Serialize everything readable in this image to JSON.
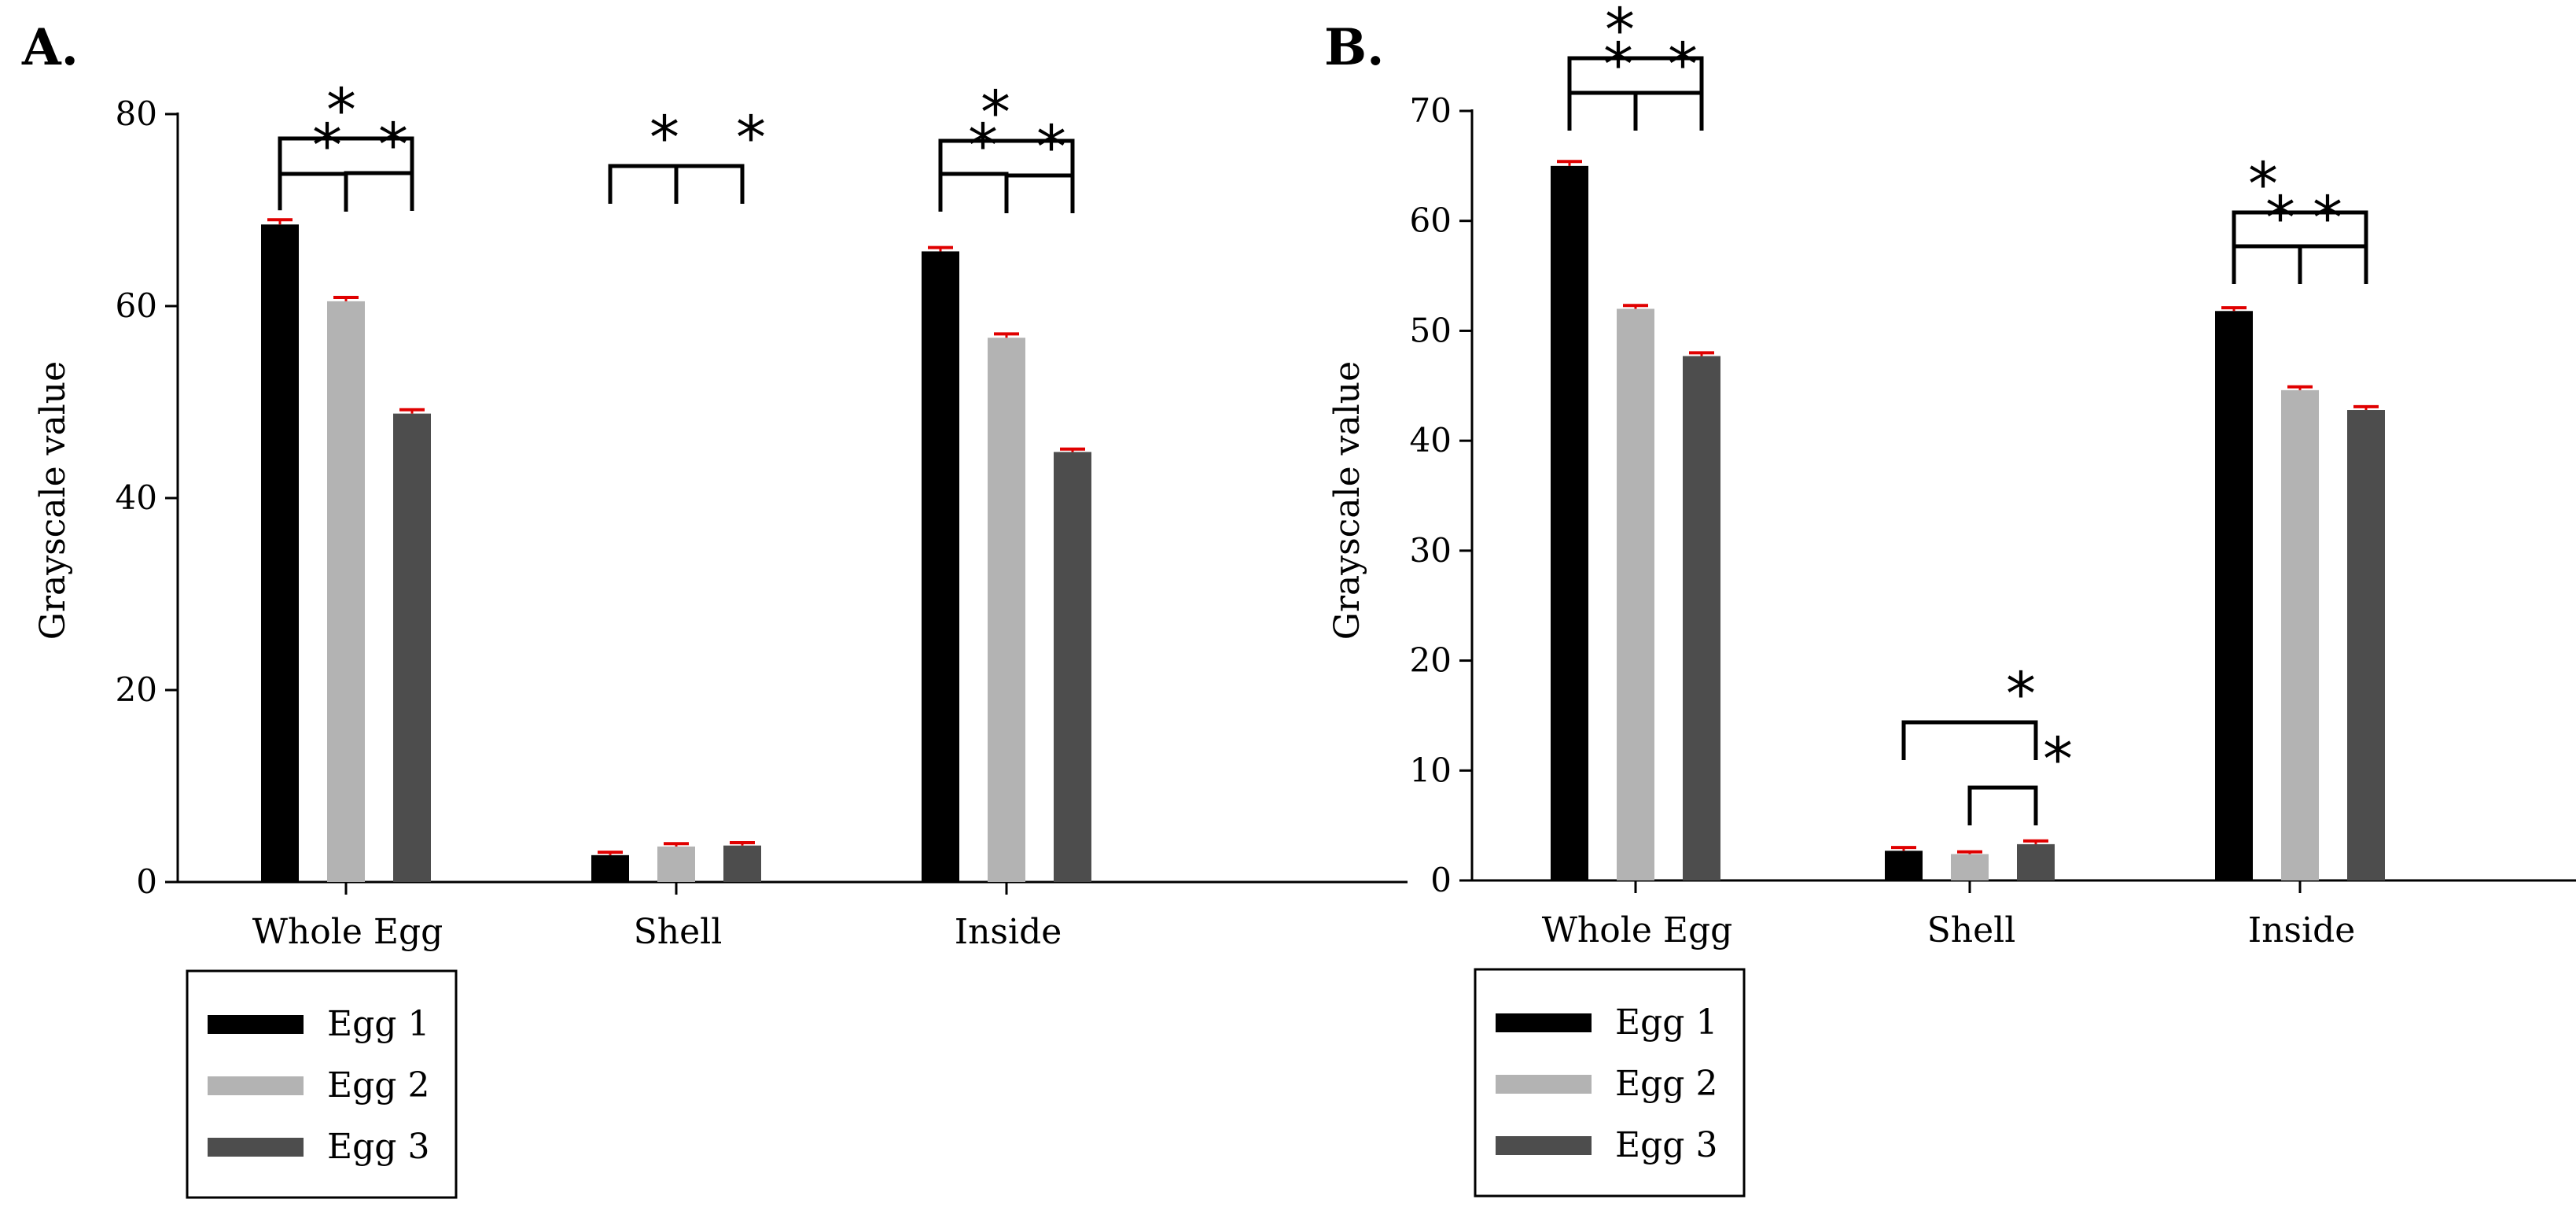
{
  "chart_data": [
    {
      "type": "bar",
      "panel_label": "A.",
      "title": "",
      "ylabel": "Grayscale value",
      "xlabel": "",
      "ylim": [
        0,
        80
      ],
      "yticks": [
        0,
        20,
        40,
        60,
        80
      ],
      "categories": [
        "Whole Egg",
        "Shell",
        "Inside"
      ],
      "series": [
        {
          "name": "Egg 1",
          "color": "#000000",
          "values": [
            68.5,
            2.8,
            65.7
          ],
          "errors": [
            0.5,
            0.3,
            0.4
          ]
        },
        {
          "name": "Egg 2",
          "color": "#b3b3b3",
          "values": [
            60.5,
            3.7,
            56.7
          ],
          "errors": [
            0.4,
            0.3,
            0.4
          ]
        },
        {
          "name": "Egg 3",
          "color": "#4d4d4d",
          "values": [
            48.8,
            3.8,
            44.8
          ],
          "errors": [
            0.4,
            0.3,
            0.3
          ]
        }
      ],
      "significance": [
        {
          "category": "Whole Egg",
          "from": "Egg 1",
          "to": "Egg 2",
          "label": "*"
        },
        {
          "category": "Whole Egg",
          "from": "Egg 1",
          "to": "Egg 3",
          "label": "*"
        },
        {
          "category": "Whole Egg",
          "from": "Egg 2",
          "to": "Egg 3",
          "label": "*"
        },
        {
          "category": "Shell",
          "from": "Egg 1",
          "to": "Egg 2",
          "label": "*"
        },
        {
          "category": "Shell",
          "from": "Egg 1",
          "to": "Egg 3",
          "label": "*"
        },
        {
          "category": "Inside",
          "from": "Egg 1",
          "to": "Egg 2",
          "label": "*"
        },
        {
          "category": "Inside",
          "from": "Egg 1",
          "to": "Egg 3",
          "label": "*"
        },
        {
          "category": "Inside",
          "from": "Egg 2",
          "to": "Egg 3",
          "label": "*"
        }
      ],
      "legend": [
        "Egg 1",
        "Egg 2",
        "Egg 3"
      ],
      "legend_position": "bottom-left"
    },
    {
      "type": "bar",
      "panel_label": "B.",
      "title": "",
      "ylabel": "Grayscale value",
      "xlabel": "",
      "ylim": [
        0,
        70
      ],
      "yticks": [
        0,
        10,
        20,
        30,
        40,
        50,
        60,
        70
      ],
      "categories": [
        "Whole Egg",
        "Shell",
        "Inside"
      ],
      "series": [
        {
          "name": "Egg 1",
          "color": "#000000",
          "values": [
            65.0,
            2.7,
            51.8
          ],
          "errors": [
            0.4,
            0.3,
            0.3
          ]
        },
        {
          "name": "Egg 2",
          "color": "#b3b3b3",
          "values": [
            52.0,
            2.4,
            44.6
          ],
          "errors": [
            0.3,
            0.2,
            0.3
          ]
        },
        {
          "name": "Egg 3",
          "color": "#4d4d4d",
          "values": [
            47.7,
            3.3,
            42.8
          ],
          "errors": [
            0.3,
            0.3,
            0.3
          ]
        }
      ],
      "significance": [
        {
          "category": "Whole Egg",
          "from": "Egg 1",
          "to": "Egg 2",
          "label": "*"
        },
        {
          "category": "Whole Egg",
          "from": "Egg 1",
          "to": "Egg 3",
          "label": "*"
        },
        {
          "category": "Whole Egg",
          "from": "Egg 2",
          "to": "Egg 3",
          "label": "*"
        },
        {
          "category": "Shell",
          "from": "Egg 1",
          "to": "Egg 3",
          "label": "*"
        },
        {
          "category": "Shell",
          "from": "Egg 2",
          "to": "Egg 3",
          "label": "*"
        },
        {
          "category": "Inside",
          "from": "Egg 1",
          "to": "Egg 2",
          "label": "*"
        },
        {
          "category": "Inside",
          "from": "Egg 1",
          "to": "Egg 3",
          "label": "*"
        },
        {
          "category": "Inside",
          "from": "Egg 2",
          "to": "Egg 3",
          "label": "*"
        }
      ],
      "legend": [
        "Egg 1",
        "Egg 2",
        "Egg 3"
      ],
      "legend_position": "bottom-left"
    }
  ],
  "colors": {
    "error_bar": "#e00000",
    "axis": "#000000"
  }
}
